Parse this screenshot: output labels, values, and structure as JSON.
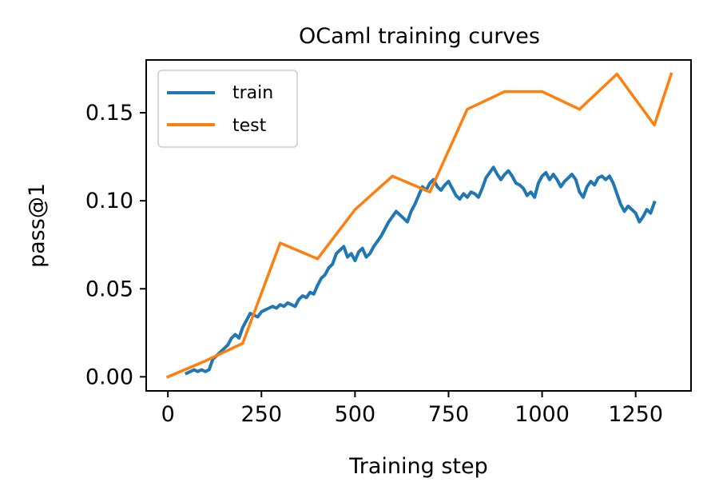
{
  "chart_data": {
    "type": "line",
    "title": "OCaml training curves",
    "xlabel": "Training step",
    "ylabel": "pass@1",
    "xlim": [
      -58,
      1398
    ],
    "ylim": [
      -0.008,
      0.18
    ],
    "xticks": [
      0,
      250,
      500,
      750,
      1000,
      1250
    ],
    "xtick_labels": [
      "0",
      "250",
      "500",
      "750",
      "1000",
      "1250"
    ],
    "yticks": [
      0.0,
      0.05,
      0.1,
      0.15
    ],
    "ytick_labels": [
      "0.00",
      "0.05",
      "0.10",
      "0.15"
    ],
    "grid": false,
    "legend_position": "upper-left",
    "series": [
      {
        "name": "train",
        "color": "#1f77b4",
        "x": [
          50,
          60,
          70,
          80,
          90,
          100,
          110,
          120,
          130,
          140,
          150,
          160,
          170,
          180,
          190,
          200,
          210,
          220,
          230,
          240,
          250,
          260,
          270,
          280,
          290,
          300,
          310,
          320,
          330,
          340,
          350,
          360,
          370,
          380,
          390,
          400,
          410,
          420,
          430,
          440,
          450,
          460,
          470,
          480,
          490,
          500,
          510,
          520,
          530,
          540,
          550,
          560,
          570,
          580,
          590,
          600,
          610,
          620,
          630,
          640,
          650,
          660,
          670,
          680,
          690,
          700,
          710,
          720,
          730,
          740,
          750,
          760,
          770,
          780,
          790,
          800,
          810,
          820,
          830,
          840,
          850,
          860,
          870,
          880,
          890,
          900,
          910,
          920,
          930,
          940,
          950,
          960,
          970,
          980,
          990,
          1000,
          1010,
          1020,
          1030,
          1040,
          1050,
          1060,
          1070,
          1080,
          1090,
          1100,
          1110,
          1120,
          1130,
          1140,
          1150,
          1160,
          1170,
          1180,
          1190,
          1200,
          1210,
          1220,
          1230,
          1240,
          1250,
          1260,
          1270,
          1280,
          1290,
          1300
        ],
        "values": [
          0.002,
          0.003,
          0.004,
          0.003,
          0.004,
          0.003,
          0.004,
          0.01,
          0.012,
          0.014,
          0.016,
          0.018,
          0.022,
          0.024,
          0.022,
          0.028,
          0.032,
          0.036,
          0.035,
          0.034,
          0.037,
          0.038,
          0.039,
          0.04,
          0.039,
          0.041,
          0.04,
          0.042,
          0.041,
          0.04,
          0.044,
          0.046,
          0.045,
          0.048,
          0.047,
          0.052,
          0.056,
          0.058,
          0.062,
          0.064,
          0.07,
          0.072,
          0.074,
          0.068,
          0.07,
          0.066,
          0.071,
          0.073,
          0.068,
          0.07,
          0.074,
          0.077,
          0.08,
          0.084,
          0.088,
          0.091,
          0.094,
          0.092,
          0.09,
          0.088,
          0.094,
          0.098,
          0.103,
          0.108,
          0.106,
          0.11,
          0.112,
          0.108,
          0.106,
          0.109,
          0.111,
          0.107,
          0.103,
          0.101,
          0.104,
          0.102,
          0.105,
          0.104,
          0.102,
          0.107,
          0.113,
          0.116,
          0.119,
          0.115,
          0.112,
          0.115,
          0.117,
          0.114,
          0.11,
          0.109,
          0.107,
          0.103,
          0.105,
          0.102,
          0.11,
          0.114,
          0.116,
          0.112,
          0.115,
          0.112,
          0.108,
          0.111,
          0.113,
          0.115,
          0.112,
          0.105,
          0.102,
          0.108,
          0.111,
          0.109,
          0.113,
          0.114,
          0.112,
          0.114,
          0.11,
          0.104,
          0.098,
          0.094,
          0.097,
          0.095,
          0.093,
          0.088,
          0.091,
          0.095,
          0.093,
          0.099
        ]
      },
      {
        "name": "test",
        "color": "#ff7f0e",
        "x": [
          0,
          100,
          200,
          300,
          400,
          500,
          600,
          700,
          800,
          900,
          1000,
          1100,
          1200,
          1300,
          1345
        ],
        "values": [
          0.0,
          0.009,
          0.019,
          0.076,
          0.067,
          0.095,
          0.114,
          0.105,
          0.152,
          0.162,
          0.162,
          0.152,
          0.172,
          0.143,
          0.172
        ]
      }
    ]
  }
}
